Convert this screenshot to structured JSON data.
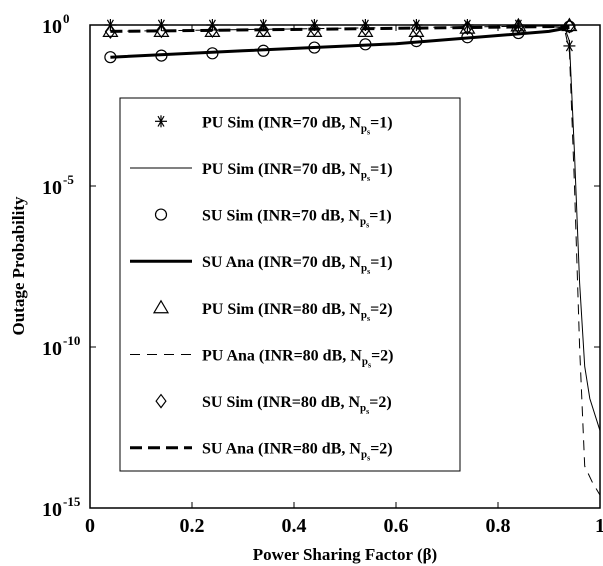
{
  "chart_data": {
    "type": "line",
    "xlabel": "Power Sharing Factor (β)",
    "ylabel": "Outage Probability",
    "xlim": [
      0,
      1
    ],
    "ylim_log10": [
      -15,
      0
    ],
    "yscale": "log",
    "legend_placement": "center",
    "x_ticks": [
      "0",
      "0.2",
      "0.4",
      "0.6",
      "0.8",
      "1"
    ],
    "y_ticks": [
      {
        "base": "10",
        "exp": "0"
      },
      {
        "base": "10",
        "exp": "-5"
      },
      {
        "base": "10",
        "exp": "-10"
      },
      {
        "base": "10",
        "exp": "-15"
      }
    ],
    "series": [
      {
        "name": "PU Sim (INR=70 dB, N",
        "sub": "p",
        "subsub": "s",
        "tail": "=1)",
        "marker": "asterisk",
        "line": "none",
        "points": [
          [
            0.04,
            0.0
          ],
          [
            0.14,
            0.0
          ],
          [
            0.24,
            0.0
          ],
          [
            0.34,
            0.0
          ],
          [
            0.44,
            0.0
          ],
          [
            0.54,
            0.0
          ],
          [
            0.64,
            0.0
          ],
          [
            0.74,
            0.0
          ],
          [
            0.84,
            0.0
          ],
          [
            0.94,
            -0.65
          ]
        ]
      },
      {
        "name": "PU Sim (INR=70 dB, N",
        "sub": "p",
        "subsub": "s",
        "tail": "=1)",
        "marker": "none",
        "line": "thin",
        "points": [
          [
            0.04,
            0.0
          ],
          [
            0.3,
            0.0
          ],
          [
            0.6,
            0.0
          ],
          [
            0.9,
            0.0
          ],
          [
            0.93,
            -0.05
          ],
          [
            0.94,
            -0.5
          ],
          [
            0.95,
            -4.0
          ],
          [
            0.96,
            -8.0
          ],
          [
            0.97,
            -10.6
          ],
          [
            0.98,
            -11.6
          ],
          [
            1.0,
            -12.6
          ]
        ]
      },
      {
        "name": "SU Sim (INR=70 dB, N",
        "sub": "p",
        "subsub": "s",
        "tail": "=1)",
        "marker": "circle",
        "line": "none",
        "points": [
          [
            0.04,
            -1.0
          ],
          [
            0.14,
            -0.95
          ],
          [
            0.24,
            -0.88
          ],
          [
            0.34,
            -0.8
          ],
          [
            0.44,
            -0.7
          ],
          [
            0.54,
            -0.6
          ],
          [
            0.64,
            -0.5
          ],
          [
            0.74,
            -0.38
          ],
          [
            0.84,
            -0.25
          ],
          [
            0.94,
            -0.05
          ]
        ]
      },
      {
        "name": "SU Ana (INR=70 dB, N",
        "sub": "p",
        "subsub": "s",
        "tail": "=1)",
        "marker": "none",
        "line": "thick",
        "points": [
          [
            0.04,
            -1.0
          ],
          [
            0.3,
            -0.8
          ],
          [
            0.6,
            -0.58
          ],
          [
            0.9,
            -0.2
          ],
          [
            0.94,
            -0.08
          ]
        ]
      },
      {
        "name": "PU Sim (INR=80 dB, N",
        "sub": "p",
        "subsub": "s",
        "tail": "=2)",
        "marker": "triangle",
        "line": "none",
        "points": [
          [
            0.04,
            -0.2
          ],
          [
            0.14,
            -0.2
          ],
          [
            0.24,
            -0.2
          ],
          [
            0.34,
            -0.2
          ],
          [
            0.44,
            -0.2
          ],
          [
            0.54,
            -0.2
          ],
          [
            0.64,
            -0.2
          ],
          [
            0.74,
            -0.1
          ],
          [
            0.84,
            -0.03
          ],
          [
            0.94,
            -0.02
          ]
        ]
      },
      {
        "name": "PU Ana (INR=80 dB, N",
        "sub": "p",
        "subsub": "s",
        "tail": "=2)",
        "marker": "none",
        "line": "thin-dashed",
        "points": [
          [
            0.04,
            -0.2
          ],
          [
            0.5,
            -0.1
          ],
          [
            0.9,
            -0.03
          ],
          [
            0.93,
            -0.1
          ],
          [
            0.94,
            -0.8
          ],
          [
            0.95,
            -5.0
          ],
          [
            0.96,
            -10.0
          ],
          [
            0.97,
            -13.7
          ],
          [
            0.985,
            -14.2
          ],
          [
            1.0,
            -14.6
          ]
        ]
      },
      {
        "name": "SU Sim (INR=80 dB, N",
        "sub": "p",
        "subsub": "s",
        "tail": "=2)",
        "marker": "diamond",
        "line": "none",
        "points": [
          [
            0.04,
            -0.2
          ],
          [
            0.14,
            -0.18
          ],
          [
            0.24,
            -0.17
          ],
          [
            0.34,
            -0.15
          ],
          [
            0.44,
            -0.13
          ],
          [
            0.54,
            -0.12
          ],
          [
            0.64,
            -0.1
          ],
          [
            0.74,
            -0.08
          ],
          [
            0.84,
            -0.05
          ],
          [
            0.94,
            -0.03
          ]
        ]
      },
      {
        "name": "SU Ana (INR=80 dB, N",
        "sub": "p",
        "subsub": "s",
        "tail": "=2)",
        "marker": "none",
        "line": "thick-dashed",
        "points": [
          [
            0.04,
            -0.2
          ],
          [
            0.5,
            -0.12
          ],
          [
            0.9,
            -0.05
          ],
          [
            0.94,
            -0.03
          ]
        ]
      }
    ]
  }
}
